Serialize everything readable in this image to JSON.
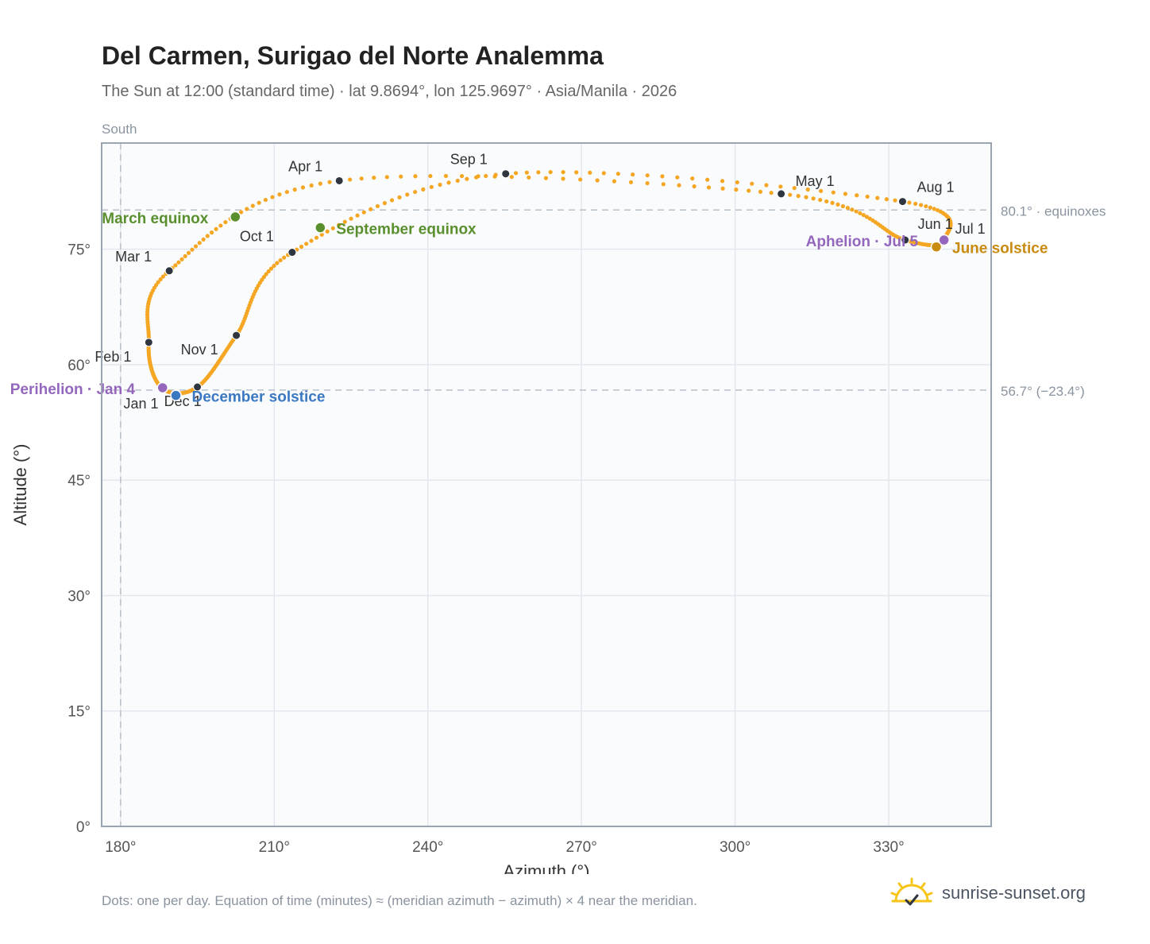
{
  "title": "Del Carmen, Surigao del Norte Analemma",
  "subtitle": "The Sun at 12:00 (standard time) · lat 9.8694°, lon 125.9697° · Asia/Manila · 2026",
  "footnote": "Dots: one per day. Equation of time (minutes) ≈ (meridian azimuth − azimuth) × 4 near the meridian.",
  "brand": {
    "text": "sunrise-sunset.org",
    "icon": "sun-logo-icon"
  },
  "colors": {
    "path": "#f5a623",
    "month_dot": "#2f3640",
    "equinox": "#5a8f2e",
    "june_solstice": "#c98a10",
    "december_solstice": "#3a78c2",
    "apsis": "#9467bd",
    "plot_bg": "#f9fbfd",
    "grid": "#e3e8ee",
    "frame": "#9aa5b1"
  },
  "chart_data": {
    "type": "scatter",
    "title": "Del Carmen, Surigao del Norte Analemma",
    "xlabel": "Azimuth (°)",
    "ylabel": "Altitude (°)",
    "xlim": [
      176.3,
      350
    ],
    "ylim": [
      0,
      88.8
    ],
    "xticks": [
      180,
      210,
      240,
      270,
      300,
      330
    ],
    "xtick_labels": [
      "180°",
      "210°",
      "240°",
      "270°",
      "300°",
      "330°"
    ],
    "yticks": [
      0,
      15,
      30,
      45,
      60,
      75
    ],
    "ytick_labels": [
      "0°",
      "15°",
      "30°",
      "45°",
      "60°",
      "75°"
    ],
    "grid": true,
    "top_axis_label": {
      "value": 180,
      "text": "South"
    },
    "reference_lines": [
      {
        "axis": "y",
        "value": 80.1,
        "label": "80.1° · equinoxes"
      },
      {
        "axis": "y",
        "value": 56.7,
        "label": "56.7° (−23.4°)"
      },
      {
        "axis": "x",
        "value": 180,
        "label": ""
      }
    ],
    "month_markers": [
      {
        "label": "Jan 1",
        "x": 188.0,
        "y": 57.0
      },
      {
        "label": "Feb 1",
        "x": 185.5,
        "y": 62.9
      },
      {
        "label": "Mar 1",
        "x": 189.5,
        "y": 72.2
      },
      {
        "label": "Apr 1",
        "x": 222.7,
        "y": 83.9
      },
      {
        "label": "May 1",
        "x": 309.0,
        "y": 82.2
      },
      {
        "label": "Jun 1",
        "x": 333.2,
        "y": 76.2
      },
      {
        "label": "Jul 1",
        "x": 340.8,
        "y": 76.2
      },
      {
        "label": "Aug 1",
        "x": 332.7,
        "y": 81.2
      },
      {
        "label": "Sep 1",
        "x": 255.2,
        "y": 84.8
      },
      {
        "label": "Oct 1",
        "x": 213.5,
        "y": 74.6
      },
      {
        "label": "Nov 1",
        "x": 202.6,
        "y": 63.8
      },
      {
        "label": "Dec 1",
        "x": 195.0,
        "y": 57.1
      }
    ],
    "events": [
      {
        "label": "March equinox",
        "x": 202.4,
        "y": 79.2,
        "kind": "equinox"
      },
      {
        "label": "September equinox",
        "x": 219.0,
        "y": 77.8,
        "kind": "equinox"
      },
      {
        "label": "June solstice",
        "x": 339.3,
        "y": 75.3,
        "kind": "june_solstice"
      },
      {
        "label": "December solstice",
        "x": 190.8,
        "y": 56.0,
        "kind": "december_solstice"
      },
      {
        "label": "Perihelion · Jan 4",
        "x": 188.2,
        "y": 57.0,
        "kind": "apsis"
      },
      {
        "label": "Aphelion · Jul 5",
        "x": 340.8,
        "y": 76.2,
        "kind": "apsis"
      }
    ]
  }
}
